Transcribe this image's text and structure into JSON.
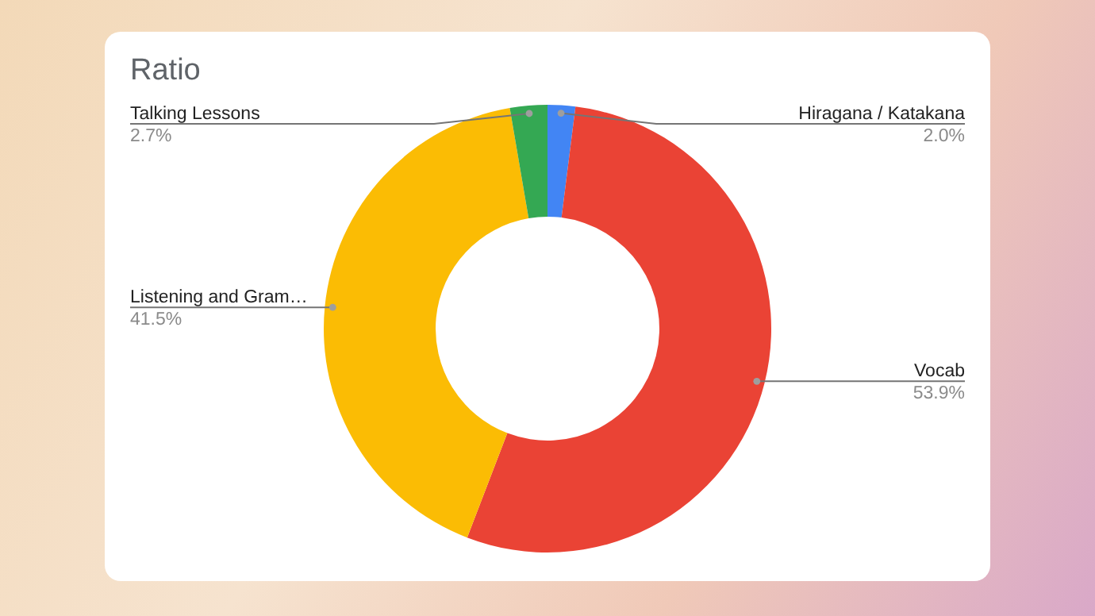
{
  "chart_data": {
    "type": "donut",
    "title": "Ratio",
    "categories": [
      "Hiragana / Katakana",
      "Vocab",
      "Listening and Gram…",
      "Talking Lessons"
    ],
    "values": [
      2.0,
      53.9,
      41.5,
      2.7
    ],
    "colors": [
      "#4285f4",
      "#ea4335",
      "#fbbc04",
      "#34a853"
    ],
    "value_labels": [
      "2.0%",
      "53.9%",
      "41.5%",
      "2.7%"
    ],
    "legend": false
  }
}
